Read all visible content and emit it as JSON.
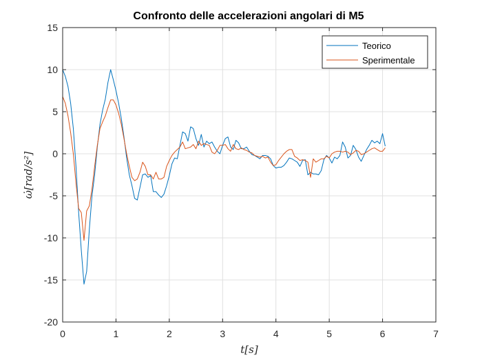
{
  "chart_data": {
    "type": "line",
    "title": "Confronto delle accelerazioni angolari di M5",
    "xlabel": "t[s]",
    "ylabel": "ω̇[rad/s²]",
    "xlim": [
      0,
      7
    ],
    "ylim": [
      -20,
      15
    ],
    "xticks": [
      0,
      1,
      2,
      3,
      4,
      5,
      6,
      7
    ],
    "yticks": [
      -20,
      -15,
      -10,
      -5,
      0,
      5,
      10,
      15
    ],
    "xtick_labels": [
      "0",
      "1",
      "2",
      "3",
      "4",
      "5",
      "6",
      "7"
    ],
    "ytick_labels": [
      "-20",
      "-15",
      "-10",
      "-5",
      "0",
      "5",
      "10",
      "15"
    ],
    "grid": true,
    "legend_position": "top-right",
    "series": [
      {
        "name": "Teorico",
        "color": "#0072BD",
        "x": [
          0,
          0.05,
          0.1,
          0.15,
          0.2,
          0.25,
          0.3,
          0.35,
          0.4,
          0.45,
          0.5,
          0.55,
          0.6,
          0.65,
          0.7,
          0.75,
          0.8,
          0.85,
          0.9,
          0.95,
          1.0,
          1.05,
          1.1,
          1.15,
          1.2,
          1.25,
          1.3,
          1.35,
          1.4,
          1.45,
          1.5,
          1.55,
          1.6,
          1.65,
          1.7,
          1.75,
          1.8,
          1.85,
          1.9,
          1.95,
          2.0,
          2.05,
          2.1,
          2.15,
          2.2,
          2.25,
          2.3,
          2.35,
          2.4,
          2.45,
          2.5,
          2.55,
          2.6,
          2.65,
          2.7,
          2.75,
          2.8,
          2.85,
          2.9,
          2.95,
          3.0,
          3.05,
          3.1,
          3.15,
          3.2,
          3.25,
          3.3,
          3.35,
          3.4,
          3.45,
          3.5,
          3.55,
          3.6,
          3.65,
          3.7,
          3.75,
          3.8,
          3.85,
          3.9,
          3.95,
          4.0,
          4.05,
          4.1,
          4.15,
          4.2,
          4.25,
          4.3,
          4.35,
          4.4,
          4.45,
          4.5,
          4.55,
          4.6,
          4.65,
          4.7,
          4.75,
          4.8,
          4.85,
          4.9,
          4.95,
          5.0,
          5.05,
          5.1,
          5.15,
          5.2,
          5.25,
          5.3,
          5.35,
          5.4,
          5.45,
          5.5,
          5.55,
          5.6,
          5.65,
          5.7,
          5.75,
          5.8,
          5.85,
          5.9,
          5.95,
          6.0,
          6.05
        ],
        "y": [
          10.0,
          9.2,
          8.0,
          6.0,
          3.0,
          -1.5,
          -7.0,
          -11.5,
          -15.5,
          -14.0,
          -9.0,
          -5.0,
          -2.5,
          0.8,
          3.5,
          5.2,
          6.5,
          8.5,
          10.0,
          8.8,
          7.5,
          6.0,
          4.2,
          2.0,
          -0.5,
          -2.5,
          -3.8,
          -5.3,
          -5.5,
          -4.0,
          -2.5,
          -2.4,
          -2.8,
          -2.6,
          -4.5,
          -4.5,
          -4.9,
          -5.2,
          -4.8,
          -3.8,
          -2.6,
          -1.2,
          -0.5,
          -0.6,
          1.0,
          2.6,
          2.4,
          1.5,
          3.2,
          3.0,
          1.8,
          1.0,
          2.3,
          0.8,
          1.5,
          1.2,
          1.4,
          0.8,
          0.3,
          0.0,
          1.0,
          1.8,
          2.0,
          0.8,
          0.5,
          1.6,
          1.3,
          0.6,
          0.6,
          0.8,
          0.3,
          -0.1,
          -0.2,
          -0.4,
          -0.6,
          -0.2,
          -0.2,
          -0.3,
          -0.6,
          -1.4,
          -1.7,
          -1.6,
          -1.6,
          -1.4,
          -1.0,
          -0.5,
          -0.6,
          -0.8,
          -1.0,
          -1.5,
          -0.8,
          -0.7,
          -2.5,
          -2.2,
          -2.4,
          -2.4,
          -2.5,
          -2.0,
          -0.7,
          -0.2,
          -0.5,
          -1.1,
          -0.4,
          -0.6,
          -0.2,
          1.4,
          0.8,
          -0.5,
          -0.2,
          1.0,
          0.5,
          -0.4,
          -0.9,
          -0.2,
          0.5,
          1.0,
          1.6,
          1.3,
          1.5,
          1.2,
          2.4,
          0.9
        ]
      },
      {
        "name": "Sperimentale",
        "color": "#D95319",
        "x": [
          0,
          0.05,
          0.1,
          0.15,
          0.2,
          0.25,
          0.3,
          0.35,
          0.4,
          0.45,
          0.5,
          0.55,
          0.6,
          0.65,
          0.7,
          0.75,
          0.8,
          0.85,
          0.9,
          0.95,
          1.0,
          1.05,
          1.1,
          1.15,
          1.2,
          1.25,
          1.3,
          1.35,
          1.4,
          1.45,
          1.5,
          1.55,
          1.6,
          1.65,
          1.7,
          1.75,
          1.8,
          1.85,
          1.9,
          1.95,
          2.0,
          2.05,
          2.1,
          2.15,
          2.2,
          2.25,
          2.3,
          2.35,
          2.4,
          2.45,
          2.5,
          2.55,
          2.6,
          2.65,
          2.7,
          2.75,
          2.8,
          2.85,
          2.9,
          2.95,
          3.0,
          3.05,
          3.1,
          3.15,
          3.2,
          3.25,
          3.3,
          3.35,
          3.4,
          3.45,
          3.5,
          3.55,
          3.6,
          3.65,
          3.7,
          3.75,
          3.8,
          3.85,
          3.9,
          3.95,
          4.0,
          4.05,
          4.1,
          4.15,
          4.2,
          4.25,
          4.3,
          4.35,
          4.4,
          4.45,
          4.5,
          4.55,
          4.6,
          4.65,
          4.7,
          4.75,
          4.8,
          4.85,
          4.9,
          4.95,
          5.0,
          5.05,
          5.1,
          5.15,
          5.2,
          5.25,
          5.3,
          5.35,
          5.4,
          5.45,
          5.5,
          5.55,
          5.6,
          5.65,
          5.7,
          5.75,
          5.8,
          5.85,
          5.9,
          5.95,
          6.0,
          6.05
        ],
        "y": [
          6.8,
          6.0,
          4.5,
          2.5,
          0.0,
          -3.5,
          -6.5,
          -7.0,
          -10.3,
          -6.8,
          -6.2,
          -4.2,
          -1.5,
          1.0,
          3.0,
          3.8,
          4.5,
          5.5,
          6.4,
          6.4,
          5.8,
          4.8,
          3.5,
          1.8,
          0.0,
          -1.5,
          -2.8,
          -3.2,
          -3.0,
          -2.2,
          -1.0,
          -1.5,
          -2.5,
          -2.5,
          -3.0,
          -2.2,
          -3.0,
          -3.0,
          -2.8,
          -1.5,
          -0.8,
          -0.2,
          0.2,
          0.5,
          0.8,
          1.4,
          0.6,
          0.7,
          0.8,
          1.1,
          0.6,
          1.5,
          1.0,
          1.2,
          1.1,
          1.0,
          0.2,
          0.0,
          0.4,
          1.0,
          1.0,
          1.1,
          0.6,
          0.3,
          1.1,
          0.6,
          0.5,
          0.7,
          0.5,
          0.4,
          0.2,
          0.1,
          -0.2,
          -0.3,
          -0.4,
          -0.3,
          -0.5,
          -0.4,
          -1.0,
          -1.4,
          -1.3,
          -0.8,
          -0.4,
          0.0,
          0.3,
          0.5,
          0.5,
          -0.3,
          -0.5,
          -0.8,
          -0.7,
          -0.8,
          -1.0,
          -2.8,
          -0.6,
          -1.0,
          -0.8,
          -0.6,
          -0.6,
          -0.3,
          -0.5,
          0.0,
          0.2,
          0.3,
          0.3,
          0.2,
          0.3,
          0.2,
          -0.1,
          0.1,
          0.4,
          0.3,
          -0.1,
          0.0,
          0.2,
          0.4,
          0.6,
          0.7,
          0.5,
          0.3,
          0.3,
          0.7
        ]
      }
    ]
  }
}
